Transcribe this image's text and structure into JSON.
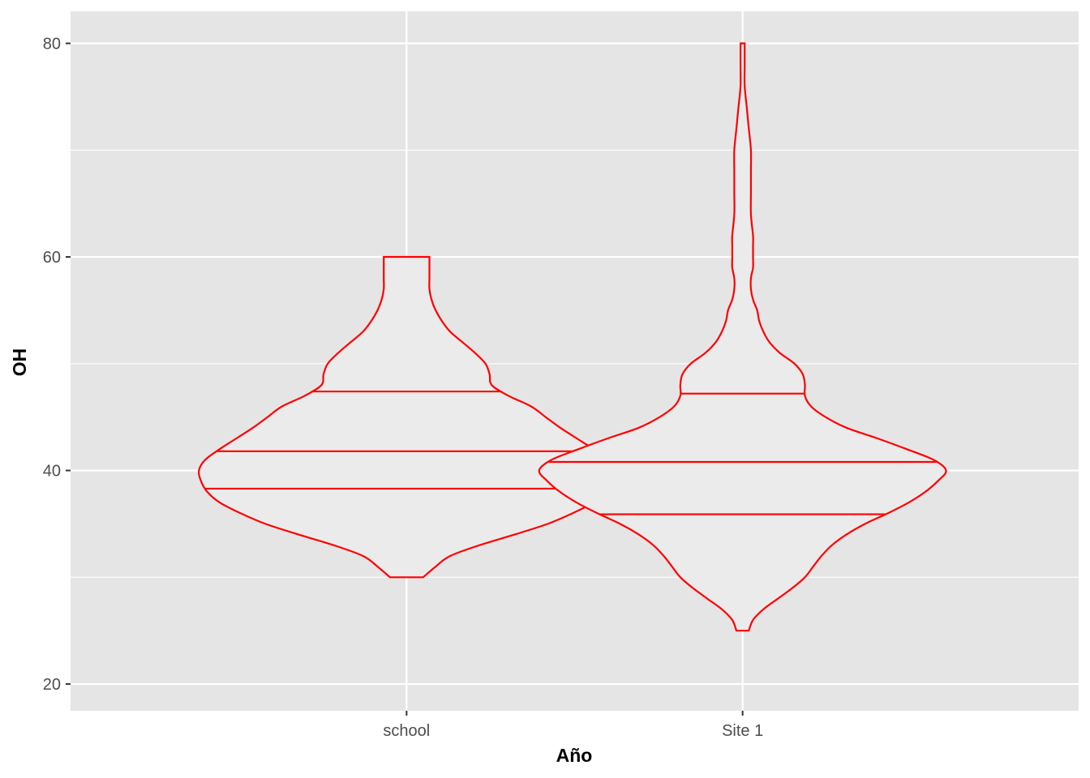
{
  "chart_data": {
    "type": "violin",
    "xlabel": "Año",
    "ylabel": "OH",
    "categories": [
      "school",
      "Site 1"
    ],
    "ylim": [
      17.5,
      83
    ],
    "yticks": [
      20,
      40,
      60,
      80
    ],
    "ytick_labels": [
      "20",
      "40",
      "60",
      "80"
    ],
    "grid": true,
    "colors": {
      "panel": "#e5e5e5",
      "grid": "#ffffff",
      "outline": "#ff0000",
      "violin_fill": "#ebebeb"
    },
    "violins": [
      {
        "category": "school",
        "min": 30,
        "max": 60,
        "quantiles": [
          38.3,
          41.8,
          47.4
        ],
        "profile": [
          [
            30,
            0.08
          ],
          [
            31,
            0.14
          ],
          [
            32,
            0.21
          ],
          [
            33,
            0.35
          ],
          [
            34,
            0.52
          ],
          [
            35,
            0.68
          ],
          [
            36,
            0.8
          ],
          [
            37,
            0.9
          ],
          [
            38,
            0.96
          ],
          [
            39,
            0.99
          ],
          [
            40,
            1.0
          ],
          [
            41,
            0.97
          ],
          [
            42,
            0.9
          ],
          [
            43,
            0.82
          ],
          [
            44,
            0.74
          ],
          [
            45,
            0.67
          ],
          [
            46,
            0.6
          ],
          [
            47,
            0.49
          ],
          [
            48,
            0.41
          ],
          [
            49,
            0.4
          ],
          [
            50,
            0.38
          ],
          [
            51,
            0.33
          ],
          [
            52,
            0.27
          ],
          [
            53,
            0.21
          ],
          [
            54,
            0.17
          ],
          [
            55,
            0.14
          ],
          [
            56,
            0.12
          ],
          [
            57,
            0.11
          ],
          [
            58,
            0.11
          ],
          [
            59,
            0.11
          ],
          [
            60,
            0.11
          ]
        ]
      },
      {
        "category": "Site 1",
        "min": 25,
        "max": 80,
        "quantiles": [
          35.9,
          40.8,
          47.2
        ],
        "profile": [
          [
            25,
            0.03
          ],
          [
            26,
            0.05
          ],
          [
            27,
            0.1
          ],
          [
            28,
            0.17
          ],
          [
            29,
            0.24
          ],
          [
            30,
            0.3
          ],
          [
            31,
            0.34
          ],
          [
            32,
            0.38
          ],
          [
            33,
            0.43
          ],
          [
            34,
            0.5
          ],
          [
            35,
            0.59
          ],
          [
            36,
            0.7
          ],
          [
            37,
            0.8
          ],
          [
            38,
            0.88
          ],
          [
            39,
            0.94
          ],
          [
            40,
            0.98
          ],
          [
            41,
            0.92
          ],
          [
            42,
            0.79
          ],
          [
            43,
            0.65
          ],
          [
            44,
            0.5
          ],
          [
            45,
            0.4
          ],
          [
            46,
            0.33
          ],
          [
            47,
            0.3
          ],
          [
            48,
            0.3
          ],
          [
            49,
            0.29
          ],
          [
            50,
            0.25
          ],
          [
            51,
            0.18
          ],
          [
            52,
            0.13
          ],
          [
            53,
            0.1
          ],
          [
            54,
            0.08
          ],
          [
            55,
            0.07
          ],
          [
            56,
            0.05
          ],
          [
            57,
            0.04
          ],
          [
            58,
            0.04
          ],
          [
            59,
            0.05
          ],
          [
            60,
            0.05
          ],
          [
            61,
            0.05
          ],
          [
            62,
            0.05
          ],
          [
            64,
            0.04
          ],
          [
            66,
            0.04
          ],
          [
            68,
            0.04
          ],
          [
            70,
            0.04
          ],
          [
            72,
            0.03
          ],
          [
            74,
            0.02
          ],
          [
            76,
            0.01
          ],
          [
            78,
            0.01
          ],
          [
            80,
            0.01
          ]
        ]
      }
    ]
  }
}
